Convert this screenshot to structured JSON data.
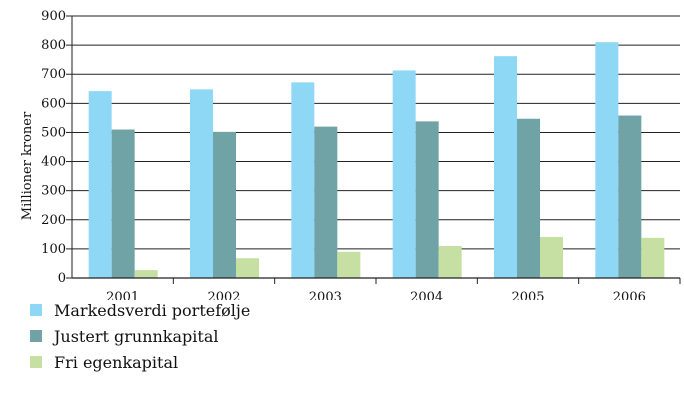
{
  "colors": {
    "markedsverdi": "#8fd8f5",
    "justert": "#6fa3a6",
    "fri": "#c6e0a4",
    "axis": "#222222",
    "grid": "#222222"
  },
  "chart_data": {
    "type": "bar",
    "categories": [
      "2001",
      "2002",
      "2003",
      "2004",
      "2005",
      "2006"
    ],
    "series": [
      {
        "name": "Markedsverdi portefølje",
        "values": [
          642,
          648,
          672,
          713,
          762,
          810
        ]
      },
      {
        "name": "Justert grunnkapital",
        "values": [
          510,
          502,
          520,
          538,
          547,
          558
        ]
      },
      {
        "name": "Fri egenkapital",
        "values": [
          27,
          68,
          90,
          110,
          141,
          138
        ]
      }
    ],
    "ylabel": "Millioner kroner",
    "ylim": [
      0,
      900
    ],
    "yticks": [
      "0",
      "100",
      "200",
      "300",
      "400",
      "500",
      "600",
      "700",
      "800",
      "900"
    ],
    "grid": true,
    "legend_position": "bottom-left"
  }
}
